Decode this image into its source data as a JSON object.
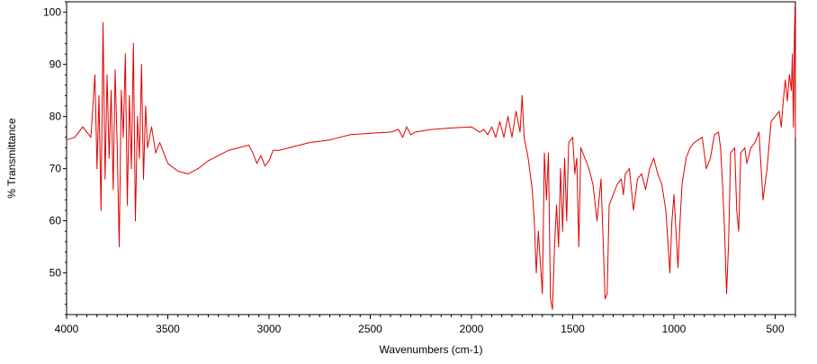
{
  "chart_data": {
    "type": "line",
    "title": "",
    "xlabel": "Wavenumbers (cm-1)",
    "ylabel": "% Transmittance",
    "xlim": [
      4000,
      400
    ],
    "ylim": [
      42,
      102
    ],
    "x_reversed": true,
    "grid": false,
    "legend": "none",
    "x_ticks": [
      4000,
      3500,
      3000,
      2500,
      2000,
      1500,
      1000,
      500
    ],
    "y_ticks": [
      50,
      60,
      70,
      80,
      90,
      100
    ],
    "line_color": "#e00000",
    "series": [
      {
        "points": [
          [
            4000,
            75.5
          ],
          [
            3960,
            76
          ],
          [
            3920,
            78
          ],
          [
            3880,
            76
          ],
          [
            3860,
            88
          ],
          [
            3850,
            70
          ],
          [
            3840,
            84
          ],
          [
            3830,
            62
          ],
          [
            3820,
            98
          ],
          [
            3810,
            68
          ],
          [
            3800,
            88
          ],
          [
            3790,
            72
          ],
          [
            3780,
            85
          ],
          [
            3770,
            66
          ],
          [
            3760,
            89
          ],
          [
            3750,
            74
          ],
          [
            3740,
            55
          ],
          [
            3730,
            85
          ],
          [
            3720,
            76
          ],
          [
            3710,
            92
          ],
          [
            3700,
            63
          ],
          [
            3690,
            84
          ],
          [
            3680,
            70
          ],
          [
            3670,
            94
          ],
          [
            3660,
            60
          ],
          [
            3650,
            80
          ],
          [
            3640,
            72
          ],
          [
            3630,
            90
          ],
          [
            3620,
            68
          ],
          [
            3610,
            82
          ],
          [
            3600,
            74
          ],
          [
            3580,
            78
          ],
          [
            3560,
            73
          ],
          [
            3540,
            75
          ],
          [
            3500,
            71
          ],
          [
            3450,
            69.5
          ],
          [
            3400,
            69
          ],
          [
            3350,
            70
          ],
          [
            3300,
            71.5
          ],
          [
            3250,
            72.5
          ],
          [
            3200,
            73.5
          ],
          [
            3150,
            74
          ],
          [
            3100,
            74.5
          ],
          [
            3080,
            73
          ],
          [
            3060,
            71
          ],
          [
            3040,
            72.5
          ],
          [
            3020,
            70.5
          ],
          [
            3000,
            71.5
          ],
          [
            2980,
            73.5
          ],
          [
            2950,
            73.5
          ],
          [
            2900,
            74
          ],
          [
            2850,
            74.5
          ],
          [
            2800,
            75
          ],
          [
            2700,
            75.5
          ],
          [
            2600,
            76.5
          ],
          [
            2500,
            76.8
          ],
          [
            2400,
            77
          ],
          [
            2360,
            77.5
          ],
          [
            2340,
            76
          ],
          [
            2320,
            78
          ],
          [
            2300,
            76.5
          ],
          [
            2280,
            77
          ],
          [
            2200,
            77.5
          ],
          [
            2100,
            77.8
          ],
          [
            2000,
            78
          ],
          [
            1980,
            77.5
          ],
          [
            1960,
            77
          ],
          [
            1940,
            77.5
          ],
          [
            1920,
            76.5
          ],
          [
            1900,
            78
          ],
          [
            1880,
            76
          ],
          [
            1860,
            79
          ],
          [
            1840,
            76
          ],
          [
            1820,
            80
          ],
          [
            1800,
            76
          ],
          [
            1780,
            81
          ],
          [
            1760,
            77
          ],
          [
            1750,
            84
          ],
          [
            1740,
            76
          ],
          [
            1720,
            72
          ],
          [
            1700,
            66
          ],
          [
            1690,
            60
          ],
          [
            1680,
            50
          ],
          [
            1670,
            58
          ],
          [
            1660,
            52
          ],
          [
            1650,
            46
          ],
          [
            1640,
            73
          ],
          [
            1630,
            64
          ],
          [
            1620,
            73
          ],
          [
            1610,
            45
          ],
          [
            1600,
            43
          ],
          [
            1590,
            55
          ],
          [
            1580,
            63
          ],
          [
            1570,
            55
          ],
          [
            1560,
            70
          ],
          [
            1550,
            58
          ],
          [
            1540,
            72
          ],
          [
            1530,
            60
          ],
          [
            1520,
            75
          ],
          [
            1500,
            76
          ],
          [
            1490,
            69
          ],
          [
            1480,
            72
          ],
          [
            1470,
            55
          ],
          [
            1460,
            74
          ],
          [
            1440,
            72
          ],
          [
            1420,
            70
          ],
          [
            1400,
            67
          ],
          [
            1380,
            60
          ],
          [
            1360,
            68
          ],
          [
            1340,
            45
          ],
          [
            1330,
            46
          ],
          [
            1320,
            63
          ],
          [
            1300,
            65
          ],
          [
            1280,
            67
          ],
          [
            1260,
            68
          ],
          [
            1250,
            65
          ],
          [
            1240,
            69
          ],
          [
            1220,
            70
          ],
          [
            1200,
            62
          ],
          [
            1180,
            68
          ],
          [
            1160,
            69
          ],
          [
            1140,
            66
          ],
          [
            1120,
            70
          ],
          [
            1100,
            72
          ],
          [
            1080,
            69
          ],
          [
            1060,
            67
          ],
          [
            1040,
            62
          ],
          [
            1030,
            56
          ],
          [
            1020,
            50
          ],
          [
            1010,
            60
          ],
          [
            1000,
            65
          ],
          [
            990,
            58
          ],
          [
            980,
            51
          ],
          [
            970,
            60
          ],
          [
            960,
            67
          ],
          [
            940,
            72
          ],
          [
            920,
            74
          ],
          [
            900,
            75
          ],
          [
            880,
            75.5
          ],
          [
            860,
            76
          ],
          [
            840,
            70
          ],
          [
            820,
            72
          ],
          [
            800,
            76.5
          ],
          [
            780,
            77
          ],
          [
            770,
            74
          ],
          [
            760,
            67
          ],
          [
            750,
            58
          ],
          [
            740,
            46
          ],
          [
            730,
            56
          ],
          [
            720,
            73
          ],
          [
            700,
            74
          ],
          [
            690,
            62
          ],
          [
            680,
            58
          ],
          [
            670,
            73
          ],
          [
            650,
            74
          ],
          [
            640,
            71
          ],
          [
            620,
            74
          ],
          [
            600,
            75
          ],
          [
            580,
            77
          ],
          [
            560,
            64
          ],
          [
            540,
            70
          ],
          [
            520,
            79
          ],
          [
            500,
            80
          ],
          [
            480,
            81
          ],
          [
            470,
            78
          ],
          [
            460,
            83
          ],
          [
            450,
            87
          ],
          [
            440,
            83
          ],
          [
            430,
            88
          ],
          [
            420,
            85
          ],
          [
            415,
            92
          ],
          [
            410,
            78
          ],
          [
            405,
            96
          ],
          [
            402,
            101
          ],
          [
            400,
            76
          ]
        ]
      }
    ]
  }
}
